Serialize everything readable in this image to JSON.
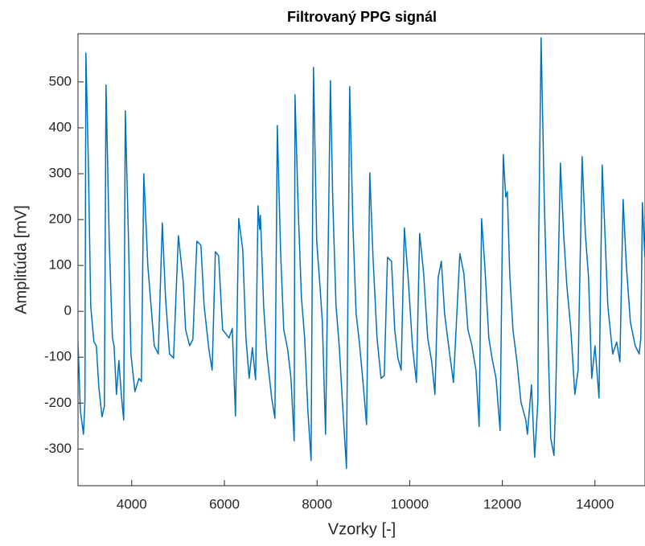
{
  "chart_data": {
    "type": "line",
    "title": "Filtrovaný PPG signál",
    "x_label": "Vzorky [-]",
    "y_label": "Amplitúda [mV]",
    "xlim": [
      2840,
      15080
    ],
    "ylim": [
      -380,
      605
    ],
    "xticks": [
      4000,
      6000,
      8000,
      10000,
      12000,
      14000
    ],
    "yticks": [
      -300,
      -200,
      -100,
      0,
      100,
      200,
      300,
      400,
      500
    ],
    "grid": false,
    "series": [
      {
        "color": "#0072bd",
        "x": [
          2837,
          2890,
          2958,
          2990,
          3010,
          3063,
          3115,
          3184,
          3236,
          3288,
          3358,
          3410,
          3444,
          3514,
          3583,
          3618,
          3670,
          3722,
          3774,
          3826,
          3861,
          3930,
          3983,
          4069,
          4156,
          4208,
          4260,
          4347,
          4417,
          4486,
          4573,
          4660,
          4729,
          4816,
          4903,
          5007,
          5111,
          5163,
          5250,
          5319,
          5406,
          5493,
          5562,
          5667,
          5736,
          5806,
          5875,
          5962,
          6101,
          6170,
          6240,
          6309,
          6396,
          6465,
          6535,
          6604,
          6674,
          6726,
          6760,
          6778,
          6847,
          6917,
          7021,
          7090,
          7142,
          7212,
          7281,
          7368,
          7437,
          7507,
          7524,
          7594,
          7663,
          7733,
          7802,
          7872,
          7924,
          7993,
          8063,
          8115,
          8184,
          8254,
          8288,
          8340,
          8410,
          8479,
          8549,
          8635,
          8705,
          8774,
          8844,
          8913,
          9000,
          9069,
          9139,
          9208,
          9295,
          9382,
          9451,
          9521,
          9608,
          9677,
          9747,
          9816,
          9885,
          9972,
          10059,
          10146,
          10215,
          10302,
          10389,
          10476,
          10545,
          10615,
          10684,
          10753,
          10840,
          10944,
          11083,
          11170,
          11257,
          11344,
          11431,
          11500,
          11552,
          11622,
          11708,
          11778,
          11865,
          11951,
          12021,
          12073,
          12108,
          12160,
          12229,
          12316,
          12403,
          12507,
          12542,
          12629,
          12698,
          12767,
          12785,
          12837,
          12906,
          12976,
          13045,
          13115,
          13149,
          13253,
          13323,
          13392,
          13479,
          13566,
          13635,
          13722,
          13792,
          13861,
          13931,
          14000,
          14087,
          14156,
          14208,
          14278,
          14382,
          14469,
          14538,
          14608,
          14677,
          14764,
          14868,
          14955,
          14990,
          15024,
          15076
        ],
        "values": [
          -58,
          -216,
          -268,
          -198,
          563,
          328,
          12,
          -67,
          -75,
          -163,
          -230,
          -207,
          493,
          153,
          -58,
          -75,
          -181,
          -107,
          -181,
          -237,
          437,
          153,
          -93,
          -175,
          -146,
          -153,
          300,
          100,
          12,
          -75,
          -93,
          193,
          30,
          -93,
          -102,
          165,
          65,
          -40,
          -75,
          -61,
          153,
          144,
          12,
          -84,
          -128,
          130,
          121,
          -40,
          -58,
          -37,
          -228,
          202,
          135,
          -58,
          -146,
          -79,
          -149,
          230,
          179,
          209,
          12,
          -93,
          -189,
          -233,
          405,
          135,
          -40,
          -84,
          -146,
          -282,
          472,
          223,
          30,
          -58,
          -216,
          -325,
          532,
          153,
          56,
          -23,
          -268,
          232,
          503,
          240,
          12,
          -75,
          -198,
          -342,
          490,
          188,
          -5,
          -67,
          -163,
          -247,
          302,
          118,
          -58,
          -146,
          -140,
          118,
          109,
          -40,
          -102,
          -128,
          182,
          65,
          -75,
          -155,
          170,
          82,
          -58,
          -110,
          -181,
          74,
          109,
          -5,
          -75,
          -155,
          126,
          82,
          -40,
          -75,
          -128,
          -251,
          202,
          100,
          -58,
          -102,
          -146,
          -260,
          342,
          249,
          261,
          82,
          -40,
          -110,
          -198,
          -237,
          -268,
          -160,
          -318,
          -198,
          153,
          596,
          240,
          -23,
          -277,
          -314,
          -198,
          323,
          170,
          56,
          -40,
          -181,
          -128,
          337,
          170,
          74,
          -146,
          -75,
          -189,
          319,
          188,
          12,
          -93,
          -67,
          -110,
          244,
          100,
          -23,
          -75,
          -93,
          -58,
          237,
          118
        ]
      }
    ]
  }
}
